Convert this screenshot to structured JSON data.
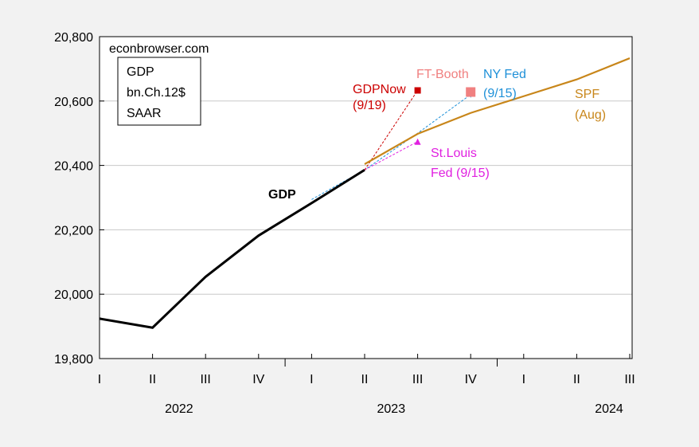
{
  "source_label": "econbrowser.com",
  "legend_box": [
    "GDP",
    "bn.Ch.12$",
    "SAAR"
  ],
  "chart_data": {
    "type": "line",
    "title": "",
    "xlabel": "",
    "ylabel": "",
    "ylim": [
      19800,
      20800
    ],
    "grid": "horizontal",
    "yticks": [
      19800,
      20000,
      20200,
      20400,
      20600,
      20800
    ],
    "ytick_labels": [
      "19,800",
      "20,000",
      "20,200",
      "20,400",
      "20,600",
      "20,800"
    ],
    "categories": [
      "2022Q1",
      "2022Q2",
      "2022Q3",
      "2022Q4",
      "2023Q1",
      "2023Q2",
      "2023Q3",
      "2023Q4",
      "2024Q1",
      "2024Q2",
      "2024Q3"
    ],
    "quarter_labels": [
      "I",
      "II",
      "III",
      "IV",
      "I",
      "II",
      "III",
      "IV",
      "I",
      "II",
      "III"
    ],
    "year_labels": [
      {
        "label": "2022",
        "center_index": 2
      },
      {
        "label": "2023",
        "center_index": 6
      },
      {
        "label": "2024",
        "center_index": 10
      }
    ],
    "series": [
      {
        "name": "GDP",
        "color": "#000000",
        "style": "solid-thick",
        "x": [
          "2022Q1",
          "2022Q2",
          "2022Q3",
          "2022Q4",
          "2023Q1",
          "2023Q2"
        ],
        "values": [
          19924,
          19896,
          20054,
          20182,
          20283,
          20386
        ]
      },
      {
        "name": "SPF (Aug)",
        "color": "#c8861a",
        "style": "solid",
        "x": [
          "2023Q2",
          "2023Q3",
          "2023Q4",
          "2024Q1",
          "2024Q2",
          "2024Q3"
        ],
        "values": [
          20404,
          20498,
          20563,
          20615,
          20667,
          20733
        ]
      },
      {
        "name": "GDPNow (9/19)",
        "color": "#cc0000",
        "style": "dashed",
        "marker": "square",
        "x": [
          "2023Q2",
          "2023Q3"
        ],
        "values": [
          20386,
          20633
        ]
      },
      {
        "name": "FT-Booth",
        "color": "#f08080",
        "style": "none",
        "marker": "square-large",
        "x": [
          "2023Q4"
        ],
        "values": [
          20628
        ]
      },
      {
        "name": "NY Fed (9/15)",
        "color": "#1e90d8",
        "style": "dashed",
        "marker": "triangle-down",
        "x": [
          "2023Q1",
          "2023Q2",
          "2023Q3",
          "2023Q4"
        ],
        "values": [
          20294,
          20386,
          20500,
          20620
        ]
      },
      {
        "name": "St.Louis Fed (9/15)",
        "color": "#e020e0",
        "style": "dashed",
        "marker": "triangle-up",
        "x": [
          "2023Q2",
          "2023Q3"
        ],
        "values": [
          20386,
          20474
        ]
      }
    ],
    "annotations": {
      "gdp": "GDP",
      "spf": [
        "SPF",
        "(Aug)"
      ],
      "gdpnow": [
        "GDPNow",
        "(9/19)"
      ],
      "ftbooth": "FT-Booth",
      "nyfed": [
        "NY Fed",
        "(9/15)"
      ],
      "stlouis": [
        "St.Louis",
        "Fed (9/15)"
      ]
    }
  }
}
